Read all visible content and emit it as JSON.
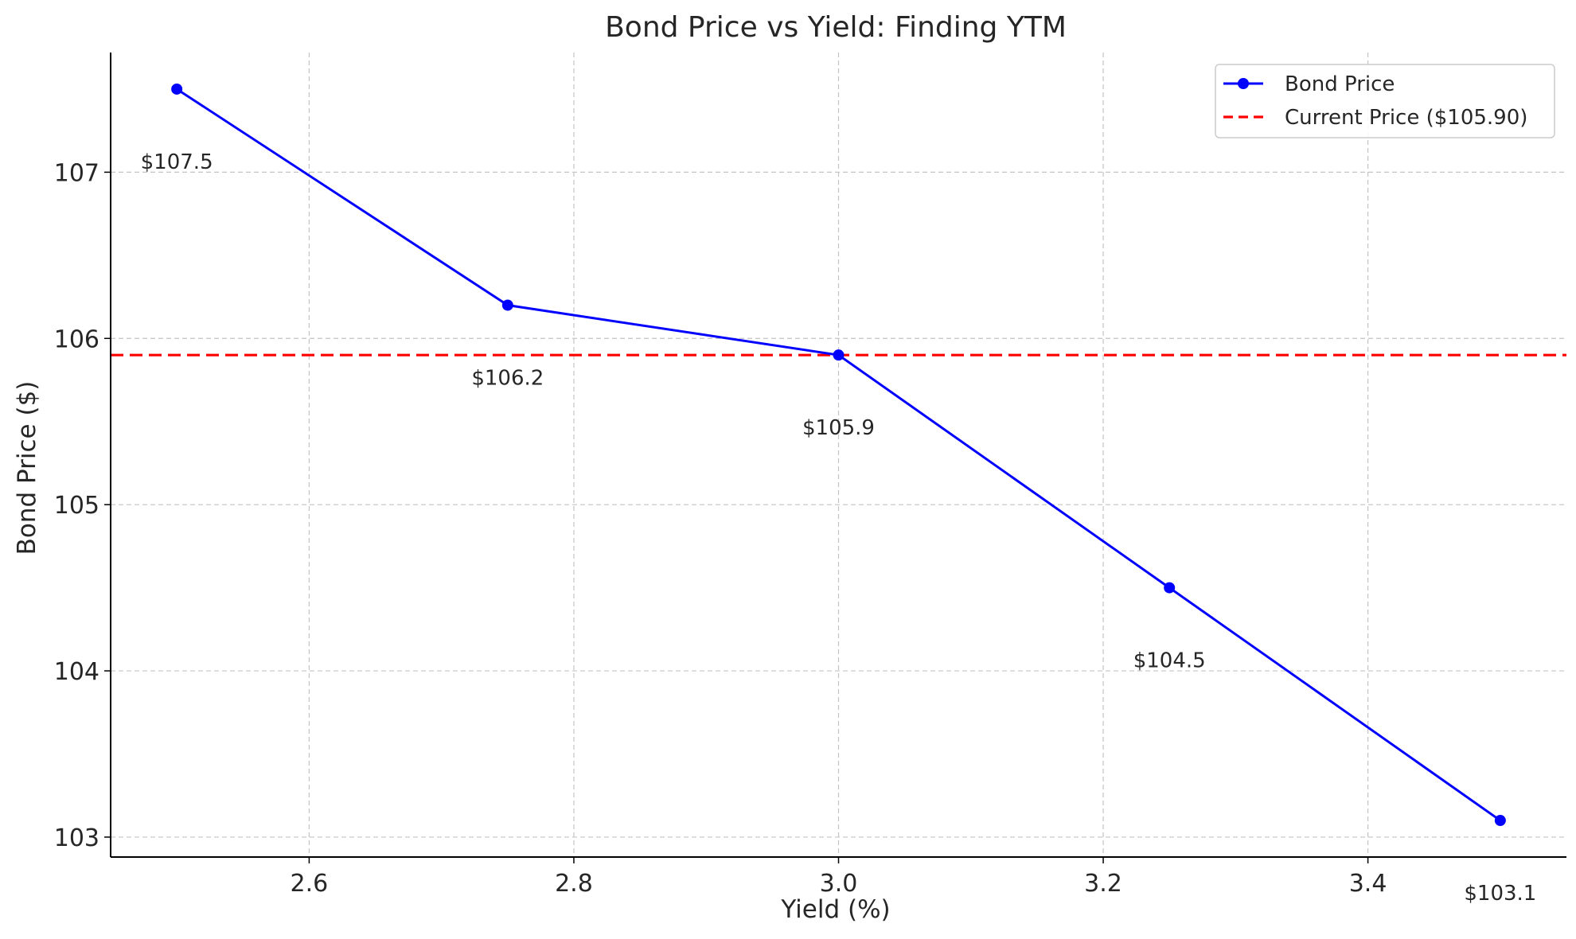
{
  "chart_data": {
    "type": "line",
    "title": "Bond Price vs Yield: Finding YTM",
    "xlabel": "Yield (%)",
    "ylabel": "Bond Price ($)",
    "xlim": [
      2.45,
      3.55
    ],
    "ylim": [
      102.88,
      107.72
    ],
    "xticks": [
      2.6,
      2.8,
      3.0,
      3.2,
      3.4
    ],
    "xtick_labels": [
      "2.6",
      "2.8",
      "3.0",
      "3.2",
      "3.4"
    ],
    "yticks": [
      103,
      104,
      105,
      106,
      107
    ],
    "ytick_labels": [
      "103",
      "104",
      "105",
      "106",
      "107"
    ],
    "grid": true,
    "legend_position": "upper right",
    "series": [
      {
        "name": "Bond Price",
        "color": "#0000ff",
        "style": "solid",
        "marker": "circle",
        "x": [
          2.5,
          2.75,
          3.0,
          3.25,
          3.5
        ],
        "y": [
          107.5,
          106.2,
          105.9,
          104.5,
          103.1
        ],
        "labels": [
          "$107.5",
          "$106.2",
          "$105.9",
          "$104.5",
          "$103.1"
        ]
      }
    ],
    "reference_lines": [
      {
        "name": "Current Price ($105.90)",
        "orientation": "horizontal",
        "y": 105.9,
        "color": "#ff0000",
        "style": "dashed"
      }
    ]
  }
}
